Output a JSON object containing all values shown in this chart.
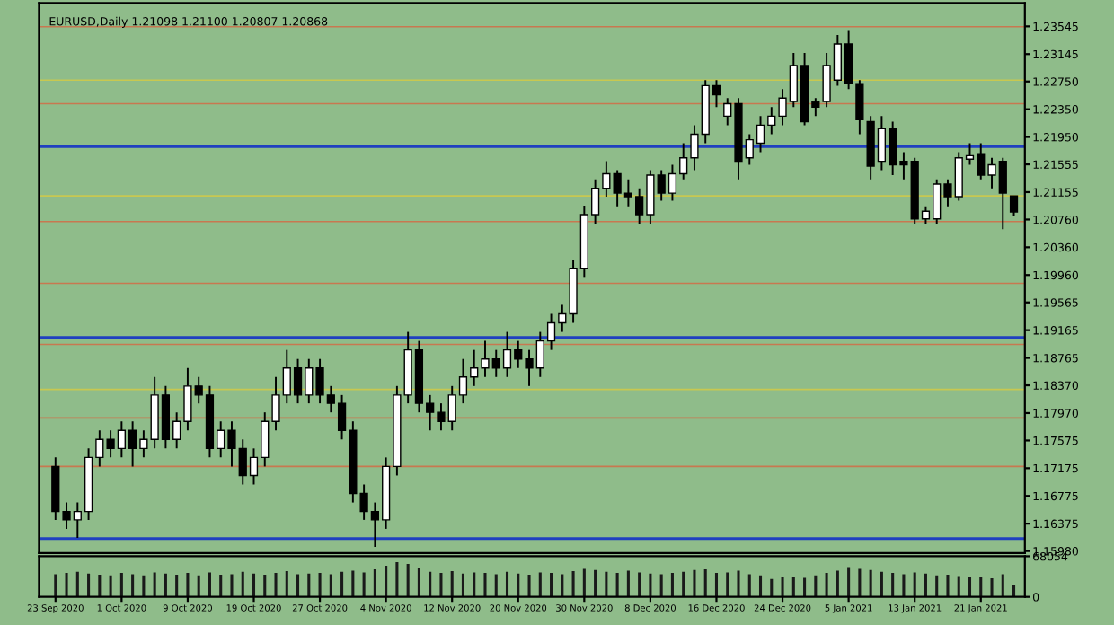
{
  "chart_data": [
    {
      "type": "candlestick",
      "title": "EURUSD,Daily 1.21098 1.21100 1.20807 1.20868",
      "categories": [
        null,
        null,
        null,
        null,
        null,
        null,
        null,
        null,
        null,
        null,
        null,
        null,
        null,
        null,
        null,
        null,
        null,
        null,
        null,
        null,
        null,
        null,
        null,
        null,
        null,
        null,
        null,
        null,
        null,
        null,
        null,
        null,
        null,
        null,
        null,
        null,
        null,
        null,
        null,
        null,
        null,
        null,
        null,
        null,
        null,
        null,
        null,
        null,
        null,
        null,
        null,
        null,
        null,
        null,
        null,
        null,
        null,
        null,
        null,
        null,
        null,
        null,
        null,
        null,
        null,
        null,
        null,
        null,
        null,
        null,
        null,
        null,
        null,
        null,
        null,
        null,
        null,
        null,
        null,
        null,
        null,
        null,
        null,
        null,
        null,
        null,
        null,
        null
      ],
      "ohlc": [
        [
          1.172,
          1.1733,
          1.1643,
          1.1655
        ],
        [
          1.1655,
          1.1668,
          1.163,
          1.1643
        ],
        [
          1.1643,
          1.1668,
          1.1617,
          1.1655
        ],
        [
          1.1655,
          1.1746,
          1.1643,
          1.1733
        ],
        [
          1.1733,
          1.1772,
          1.172,
          1.1759
        ],
        [
          1.1759,
          1.1772,
          1.1733,
          1.1746
        ],
        [
          1.1746,
          1.1785,
          1.1733,
          1.1772
        ],
        [
          1.1772,
          1.1785,
          1.172,
          1.1746
        ],
        [
          1.1746,
          1.1772,
          1.1733,
          1.1759
        ],
        [
          1.1759,
          1.1849,
          1.1746,
          1.1823
        ],
        [
          1.1823,
          1.1836,
          1.1746,
          1.1759
        ],
        [
          1.1759,
          1.1798,
          1.1746,
          1.1785
        ],
        [
          1.1785,
          1.1862,
          1.1772,
          1.1836
        ],
        [
          1.1836,
          1.1849,
          1.1811,
          1.1823
        ],
        [
          1.1823,
          1.1836,
          1.1733,
          1.1746
        ],
        [
          1.1746,
          1.1785,
          1.1733,
          1.1772
        ],
        [
          1.1772,
          1.1785,
          1.172,
          1.1746
        ],
        [
          1.1746,
          1.1759,
          1.1694,
          1.1707
        ],
        [
          1.1707,
          1.1746,
          1.1694,
          1.1733
        ],
        [
          1.1733,
          1.1798,
          1.172,
          1.1785
        ],
        [
          1.1785,
          1.1849,
          1.1772,
          1.1823
        ],
        [
          1.1823,
          1.1888,
          1.1811,
          1.1862
        ],
        [
          1.1862,
          1.1875,
          1.1811,
          1.1823
        ],
        [
          1.1823,
          1.1875,
          1.1811,
          1.1862
        ],
        [
          1.1862,
          1.1875,
          1.1811,
          1.1823
        ],
        [
          1.1823,
          1.1836,
          1.1798,
          1.1811
        ],
        [
          1.1811,
          1.1823,
          1.1759,
          1.1772
        ],
        [
          1.1772,
          1.1785,
          1.1668,
          1.1681
        ],
        [
          1.1681,
          1.1694,
          1.1643,
          1.1655
        ],
        [
          1.1655,
          1.1668,
          1.1604,
          1.1643
        ],
        [
          1.1643,
          1.1733,
          1.163,
          1.172
        ],
        [
          1.172,
          1.1836,
          1.1707,
          1.1823
        ],
        [
          1.1823,
          1.1914,
          1.1811,
          1.1888
        ],
        [
          1.1888,
          1.1901,
          1.1798,
          1.1811
        ],
        [
          1.1811,
          1.1823,
          1.1772,
          1.1798
        ],
        [
          1.1798,
          1.1811,
          1.1772,
          1.1785
        ],
        [
          1.1785,
          1.1836,
          1.1772,
          1.1823
        ],
        [
          1.1823,
          1.1875,
          1.1811,
          1.1849
        ],
        [
          1.1849,
          1.1888,
          1.1836,
          1.1862
        ],
        [
          1.1862,
          1.1901,
          1.1849,
          1.1875
        ],
        [
          1.1875,
          1.1888,
          1.1849,
          1.1862
        ],
        [
          1.1862,
          1.1914,
          1.1849,
          1.1888
        ],
        [
          1.1888,
          1.1901,
          1.1862,
          1.1875
        ],
        [
          1.1875,
          1.1888,
          1.1836,
          1.1862
        ],
        [
          1.1862,
          1.1914,
          1.1849,
          1.1901
        ],
        [
          1.1901,
          1.194,
          1.1888,
          1.1927
        ],
        [
          1.1927,
          1.1953,
          1.1914,
          1.194
        ],
        [
          1.194,
          1.2018,
          1.1927,
          1.2005
        ],
        [
          1.2005,
          1.2096,
          1.1992,
          1.2083
        ],
        [
          1.2083,
          1.2134,
          1.207,
          1.2121
        ],
        [
          1.2121,
          1.216,
          1.2109,
          1.2142
        ],
        [
          1.2142,
          1.2147,
          1.2095,
          1.2114
        ],
        [
          1.2114,
          1.2134,
          1.2095,
          1.2109
        ],
        [
          1.2109,
          1.2121,
          1.207,
          1.2083
        ],
        [
          1.2083,
          1.2147,
          1.207,
          1.214
        ],
        [
          1.214,
          1.2147,
          1.2103,
          1.2114
        ],
        [
          1.2114,
          1.2155,
          1.2103,
          1.2142
        ],
        [
          1.2142,
          1.2186,
          1.2134,
          1.2165
        ],
        [
          1.2165,
          1.2212,
          1.2147,
          1.2199
        ],
        [
          1.2199,
          1.2277,
          1.2186,
          1.2269
        ],
        [
          1.2269,
          1.2277,
          1.2238,
          1.2256
        ],
        [
          1.2225,
          1.2251,
          1.2212,
          1.2243
        ],
        [
          1.2243,
          1.2251,
          1.2134,
          1.216
        ],
        [
          1.2165,
          1.2199,
          1.2155,
          1.2191
        ],
        [
          1.2186,
          1.2225,
          1.2173,
          1.2212
        ],
        [
          1.2212,
          1.2238,
          1.2199,
          1.2225
        ],
        [
          1.2225,
          1.2264,
          1.2212,
          1.2251
        ],
        [
          1.2246,
          1.2316,
          1.2238,
          1.2298
        ],
        [
          1.2298,
          1.2316,
          1.2212,
          1.2217
        ],
        [
          1.2246,
          1.2251,
          1.2225,
          1.2238
        ],
        [
          1.2246,
          1.2316,
          1.2238,
          1.2298
        ],
        [
          1.2277,
          1.2342,
          1.2269,
          1.2329
        ],
        [
          1.2329,
          1.2349,
          1.2264,
          1.2272
        ],
        [
          1.2272,
          1.2277,
          1.2199,
          1.222
        ],
        [
          1.2217,
          1.2225,
          1.2134,
          1.2153
        ],
        [
          1.216,
          1.2225,
          1.2147,
          1.2207
        ],
        [
          1.2207,
          1.2217,
          1.214,
          1.2155
        ],
        [
          1.216,
          1.2173,
          1.2134,
          1.2155
        ],
        [
          1.216,
          1.2165,
          1.207,
          1.2077
        ],
        [
          1.2077,
          1.2095,
          1.207,
          1.2088
        ],
        [
          1.2077,
          1.2134,
          1.207,
          1.2127
        ],
        [
          1.2127,
          1.2134,
          1.2095,
          1.2109
        ],
        [
          1.2109,
          1.2173,
          1.2103,
          1.2165
        ],
        [
          1.2163,
          1.2186,
          1.2155,
          1.2168
        ],
        [
          1.2171,
          1.2186,
          1.2134,
          1.214
        ],
        [
          1.214,
          1.2165,
          1.2121,
          1.2155
        ],
        [
          1.216,
          1.2165,
          1.2062,
          1.2114
        ],
        [
          1.211,
          1.211,
          1.2081,
          1.2087
        ]
      ],
      "ylim": [
        1.1595,
        1.2388
      ],
      "yticks": [
        {
          "value": 1.23545,
          "label": "1.23545"
        },
        {
          "value": 1.23145,
          "label": "1.23145"
        },
        {
          "value": 1.2275,
          "label": "1.22750"
        },
        {
          "value": 1.2235,
          "label": "1.22350"
        },
        {
          "value": 1.2195,
          "label": "1.21950"
        },
        {
          "value": 1.21555,
          "label": "1.21555"
        },
        {
          "value": 1.21155,
          "label": "1.21155"
        },
        {
          "value": 1.2076,
          "label": "1.20760"
        },
        {
          "value": 1.2036,
          "label": "1.20360"
        },
        {
          "value": 1.1996,
          "label": "1.19960"
        },
        {
          "value": 1.19565,
          "label": "1.19565"
        },
        {
          "value": 1.19165,
          "label": "1.19165"
        },
        {
          "value": 1.18765,
          "label": "1.18765"
        },
        {
          "value": 1.1837,
          "label": "1.18370"
        },
        {
          "value": 1.1797,
          "label": "1.17970"
        },
        {
          "value": 1.17575,
          "label": "1.17575"
        },
        {
          "value": 1.17175,
          "label": "1.17175"
        },
        {
          "value": 1.16775,
          "label": "1.16775"
        },
        {
          "value": 1.16375,
          "label": "1.16375"
        },
        {
          "value": 1.1598,
          "label": "1.15980"
        }
      ],
      "ref_lines": [
        {
          "axis": "y",
          "value": 1.2181,
          "color": "#2040c0"
        },
        {
          "axis": "y",
          "value": 1.1906,
          "color": "#2040c0"
        },
        {
          "axis": "y",
          "value": 1.1616,
          "color": "#2040c0"
        },
        {
          "axis": "y",
          "value": 1.2354,
          "color": "#c87850"
        },
        {
          "axis": "y",
          "value": 1.2277,
          "color": "#c8c850"
        },
        {
          "axis": "y",
          "value": 1.2243,
          "color": "#c87850"
        },
        {
          "axis": "y",
          "value": 1.211,
          "color": "#c8c850"
        },
        {
          "axis": "y",
          "value": 1.2073,
          "color": "#c87850"
        },
        {
          "axis": "y",
          "value": 1.1984,
          "color": "#c87850"
        },
        {
          "axis": "y",
          "value": 1.1896,
          "color": "#c87850"
        },
        {
          "axis": "y",
          "value": 1.1831,
          "color": "#c8c850"
        },
        {
          "axis": "y",
          "value": 1.179,
          "color": "#c87850"
        },
        {
          "axis": "y",
          "value": 1.172,
          "color": "#c87850"
        }
      ],
      "tick_labels": "y"
    },
    {
      "type": "bar",
      "color": "#1a1a1a",
      "categories": [
        "23 Sep 2020",
        null,
        null,
        null,
        null,
        null,
        "1 Oct 2020",
        null,
        null,
        null,
        null,
        null,
        "9 Oct 2020",
        null,
        null,
        null,
        null,
        null,
        "19 Oct 2020",
        null,
        null,
        null,
        null,
        null,
        "27 Oct 2020",
        null,
        null,
        null,
        null,
        null,
        "4 Nov 2020",
        null,
        null,
        null,
        null,
        null,
        "12 Nov 2020",
        null,
        null,
        null,
        null,
        null,
        "20 Nov 2020",
        null,
        null,
        null,
        null,
        null,
        "30 Nov 2020",
        null,
        null,
        null,
        null,
        null,
        "8 Dec 2020",
        null,
        null,
        null,
        null,
        null,
        "16 Dec 2020",
        null,
        null,
        null,
        null,
        null,
        "24 Dec 2020",
        null,
        null,
        null,
        null,
        null,
        "5 Jan 2021",
        null,
        null,
        null,
        null,
        null,
        "13 Jan 2021",
        null,
        null,
        null,
        null,
        null,
        "21 Jan 2021",
        null,
        null,
        null
      ],
      "values": [
        38000,
        40000,
        42000,
        39000,
        37000,
        36000,
        40000,
        38000,
        36000,
        41000,
        39000,
        37000,
        40000,
        36000,
        41000,
        37000,
        38000,
        42000,
        39000,
        37000,
        40000,
        43000,
        38000,
        39000,
        40000,
        38000,
        42000,
        44000,
        41000,
        46000,
        52000,
        58000,
        55000,
        48000,
        42000,
        40000,
        43000,
        39000,
        41000,
        40000,
        38000,
        42000,
        39000,
        37000,
        41000,
        40000,
        38000,
        43000,
        47000,
        45000,
        42000,
        40000,
        44000,
        41000,
        39000,
        38000,
        40000,
        42000,
        45000,
        46000,
        40000,
        41000,
        44000,
        38000,
        36000,
        30000,
        34000,
        33000,
        32000,
        36000,
        40000,
        44000,
        50000,
        47000,
        45000,
        42000,
        40000,
        38000,
        41000,
        39000,
        36000,
        37000,
        35000,
        33000,
        34000,
        31000,
        38000,
        20000
      ],
      "ylim": [
        0,
        68054
      ],
      "yticks": [
        0,
        68054
      ]
    }
  ]
}
